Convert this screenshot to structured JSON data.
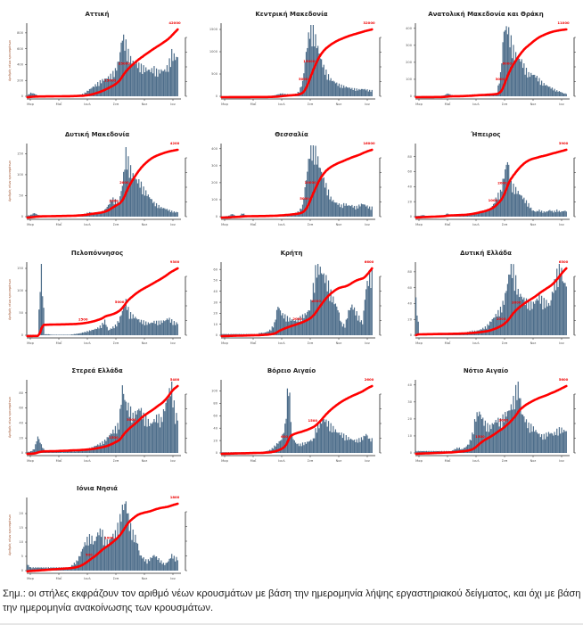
{
  "x_ticks": [
    "Μαρ",
    "Μαΐ",
    "Ιουλ",
    "Σεπ",
    "Νοε",
    "Ιαν"
  ],
  "y_axis_label": "Αριθμός νέων κρουσμάτων",
  "colors": {
    "bars": "#4d6d8a",
    "line": "#ff0000",
    "axis": "#222222"
  },
  "note": "Σημ.: οι στήλες εκφράζουν τον αριθμό νέων κρουσμάτων με βάση την ημερομηνία λήψης εργαστηριακού δείγματος, και όχι με βάση την ημερομηνία ανακοίνωσης των κρουσμάτων.",
  "chart_data": [
    {
      "type": "bar",
      "title": "Αττική",
      "ylim": [
        0,
        900
      ],
      "yticks": [
        0,
        200,
        400,
        600,
        800
      ],
      "end_label": "42000",
      "mid_labels": [
        "15000",
        "25000"
      ],
      "weekly": [
        10,
        40,
        30,
        10,
        5,
        5,
        5,
        5,
        5,
        5,
        5,
        5,
        5,
        10,
        15,
        20,
        30,
        60,
        90,
        120,
        150,
        180,
        200,
        220,
        250,
        300,
        420,
        700,
        600,
        450,
        400,
        380,
        350,
        330,
        310,
        300,
        320,
        280,
        300,
        300,
        350,
        500,
        450
      ]
    },
    {
      "type": "bar",
      "title": "Κεντρική Μακεδονία",
      "ylim": [
        0,
        1600
      ],
      "yticks": [
        0,
        500,
        1000,
        1500
      ],
      "end_label": "32000",
      "mid_labels": [
        "5000",
        "15000"
      ],
      "weekly": [
        2,
        3,
        3,
        2,
        2,
        2,
        2,
        2,
        2,
        2,
        2,
        2,
        2,
        5,
        10,
        20,
        40,
        60,
        50,
        40,
        40,
        50,
        100,
        300,
        900,
        1400,
        1350,
        1100,
        800,
        600,
        450,
        350,
        300,
        250,
        220,
        200,
        180,
        160,
        150,
        140,
        150,
        140,
        120
      ]
    },
    {
      "type": "bar",
      "title": "Ανατολική Μακεδονία και Θράκη",
      "ylim": [
        0,
        420
      ],
      "yticks": [
        0,
        100,
        200,
        300,
        400
      ],
      "end_label": "11000",
      "mid_labels": [
        "3000",
        "6000"
      ],
      "weekly": [
        1,
        1,
        1,
        1,
        1,
        1,
        1,
        2,
        5,
        15,
        8,
        3,
        2,
        3,
        5,
        8,
        10,
        10,
        8,
        8,
        8,
        8,
        10,
        20,
        120,
        360,
        370,
        300,
        230,
        210,
        190,
        150,
        120,
        120,
        110,
        90,
        70,
        60,
        50,
        40,
        30,
        25,
        15
      ]
    },
    {
      "type": "bar",
      "title": "Δυτική Μακεδονία",
      "ylim": [
        0,
        170
      ],
      "yticks": [
        0,
        50,
        100,
        150
      ],
      "end_label": "4200",
      "mid_labels": [
        "1000",
        "2000"
      ],
      "weekly": [
        2,
        4,
        8,
        4,
        2,
        1,
        1,
        1,
        1,
        1,
        1,
        1,
        1,
        2,
        3,
        4,
        5,
        8,
        10,
        6,
        8,
        10,
        15,
        25,
        40,
        35,
        30,
        70,
        140,
        110,
        90,
        80,
        75,
        60,
        50,
        40,
        30,
        25,
        20,
        18,
        15,
        12,
        10
      ]
    },
    {
      "type": "bar",
      "title": "Θεσσαλία",
      "ylim": [
        0,
        420
      ],
      "yticks": [
        0,
        100,
        200,
        300,
        400
      ],
      "end_label": "16000",
      "mid_labels": [
        "5000",
        "10000"
      ],
      "weekly": [
        1,
        2,
        5,
        15,
        5,
        5,
        20,
        5,
        2,
        2,
        2,
        2,
        2,
        3,
        4,
        6,
        8,
        10,
        12,
        14,
        16,
        20,
        30,
        60,
        200,
        350,
        390,
        330,
        260,
        200,
        150,
        100,
        80,
        70,
        60,
        70,
        60,
        60,
        50,
        60,
        70,
        60,
        50
      ]
    },
    {
      "type": "bar",
      "title": "Ήπειρος",
      "ylim": [
        0,
        95
      ],
      "yticks": [
        0,
        20,
        40,
        60,
        80
      ],
      "end_label": "3900",
      "mid_labels": [
        "1000",
        "2000"
      ],
      "weekly": [
        1,
        1,
        2,
        1,
        1,
        1,
        1,
        1,
        2,
        4,
        1,
        1,
        1,
        1,
        2,
        3,
        4,
        5,
        6,
        6,
        8,
        10,
        15,
        25,
        30,
        50,
        70,
        40,
        35,
        30,
        25,
        20,
        15,
        8,
        6,
        8,
        6,
        6,
        8,
        6,
        8,
        6,
        7
      ]
    },
    {
      "type": "bar",
      "title": "Πελοπόννησος",
      "ylim": [
        0,
        160
      ],
      "yticks": [
        0,
        50,
        100,
        150
      ],
      "end_label": "9300",
      "mid_labels": [
        "2500",
        "5000"
      ],
      "weekly": [
        1,
        1,
        1,
        1,
        150,
        2,
        2,
        1,
        1,
        1,
        1,
        1,
        1,
        2,
        3,
        4,
        6,
        8,
        10,
        12,
        15,
        20,
        30,
        10,
        15,
        20,
        30,
        50,
        70,
        45,
        40,
        35,
        30,
        28,
        25,
        25,
        28,
        27,
        28,
        30,
        35,
        30,
        25
      ]
    },
    {
      "type": "bar",
      "title": "Κρήτη",
      "ylim": [
        0,
        65
      ],
      "yticks": [
        0,
        10,
        20,
        30,
        40,
        50,
        60
      ],
      "end_label": "6600",
      "mid_labels": [
        "2000",
        "4000"
      ],
      "weekly": [
        1,
        1,
        1,
        1,
        1,
        1,
        1,
        1,
        1,
        1,
        1,
        2,
        2,
        3,
        5,
        10,
        25,
        18,
        16,
        14,
        13,
        12,
        14,
        16,
        18,
        22,
        40,
        60,
        55,
        50,
        45,
        35,
        28,
        22,
        10,
        8,
        20,
        25,
        20,
        15,
        10,
        40,
        50
      ]
    },
    {
      "type": "bar",
      "title": "Δυτική Ελλάδα",
      "ylim": [
        0,
        90
      ],
      "yticks": [
        0,
        20,
        40,
        60,
        80
      ],
      "end_label": "6500",
      "mid_labels": [
        "2000",
        "3000"
      ],
      "weekly": [
        40,
        2,
        1,
        1,
        1,
        1,
        1,
        1,
        1,
        1,
        1,
        1,
        1,
        2,
        3,
        4,
        5,
        5,
        6,
        8,
        10,
        15,
        20,
        25,
        30,
        40,
        60,
        85,
        70,
        50,
        45,
        40,
        38,
        35,
        40,
        45,
        40,
        38,
        35,
        55,
        70,
        80,
        60
      ]
    },
    {
      "type": "bar",
      "title": "Στερεά Ελλάδα",
      "ylim": [
        0,
        95
      ],
      "yticks": [
        0,
        20,
        40,
        60,
        80
      ],
      "end_label": "5400",
      "mid_labels": [
        "1500",
        "3000"
      ],
      "weekly": [
        1,
        2,
        5,
        20,
        10,
        2,
        1,
        1,
        2,
        3,
        1,
        2,
        4,
        2,
        2,
        3,
        4,
        5,
        6,
        8,
        10,
        12,
        15,
        20,
        25,
        30,
        35,
        80,
        60,
        55,
        45,
        50,
        55,
        45,
        40,
        35,
        40,
        45,
        40,
        55,
        70,
        85,
        45
      ]
    },
    {
      "type": "bar",
      "title": "Βόρειο Αιγαίο",
      "ylim": [
        0,
        115
      ],
      "yticks": [
        0,
        20,
        40,
        60,
        80,
        100
      ],
      "end_label": "2600",
      "mid_labels": [
        "600",
        "1500"
      ],
      "weekly": [
        1,
        1,
        1,
        1,
        1,
        1,
        1,
        1,
        1,
        1,
        1,
        1,
        2,
        3,
        5,
        10,
        15,
        20,
        40,
        110,
        25,
        15,
        12,
        14,
        15,
        18,
        20,
        40,
        45,
        50,
        45,
        40,
        35,
        30,
        28,
        25,
        22,
        20,
        18,
        20,
        22,
        28,
        20
      ]
    },
    {
      "type": "bar",
      "title": "Νότιο Αιγαίο",
      "ylim": [
        0,
        42
      ],
      "yticks": [
        0,
        10,
        20,
        30,
        40
      ],
      "end_label": "5600",
      "mid_labels": [
        "1500",
        "3000"
      ],
      "weekly": [
        1,
        1,
        1,
        1,
        1,
        1,
        1,
        1,
        1,
        1,
        1,
        2,
        3,
        2,
        3,
        5,
        10,
        20,
        22,
        18,
        15,
        14,
        16,
        18,
        17,
        20,
        22,
        25,
        30,
        40,
        22,
        18,
        15,
        14,
        12,
        10,
        9,
        10,
        11,
        10,
        12,
        13,
        12
      ]
    },
    {
      "type": "bar",
      "title": "Ιόνια Νησιά",
      "ylim": [
        0,
        25
      ],
      "yticks": [
        0,
        5,
        10,
        15,
        20
      ],
      "end_label": "1800",
      "mid_labels": [
        "500",
        "1000"
      ],
      "weekly": [
        2,
        1,
        1,
        1,
        1,
        1,
        1,
        1,
        1,
        1,
        1,
        1,
        1,
        2,
        3,
        5,
        8,
        10,
        11,
        9,
        12,
        13,
        10,
        9,
        11,
        12,
        15,
        20,
        22,
        15,
        12,
        10,
        5,
        4,
        3,
        4,
        5,
        4,
        3,
        2,
        3,
        5,
        4
      ]
    }
  ]
}
